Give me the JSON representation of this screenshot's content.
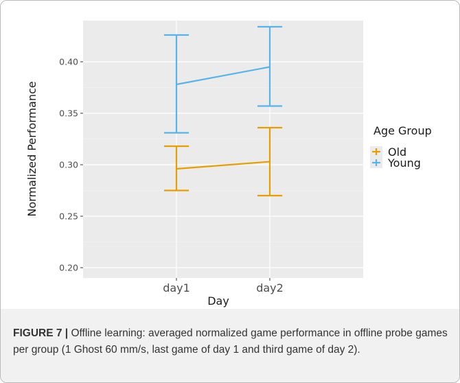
{
  "chart_data": {
    "type": "line",
    "xlabel": "Day",
    "ylabel": "Normalized Performance",
    "categories": [
      "day1",
      "day2"
    ],
    "ylim": [
      0.19,
      0.44
    ],
    "yticks": [
      0.2,
      0.25,
      0.3,
      0.35,
      0.4
    ],
    "ytick_labels": [
      "0.20",
      "0.25",
      "0.30",
      "0.35",
      "0.40"
    ],
    "grid": true,
    "legend_title": "Age Group",
    "legend_position": "right",
    "series": [
      {
        "name": "Old",
        "color": "#E69F00",
        "values": [
          0.296,
          0.303
        ],
        "lower": [
          0.275,
          0.27
        ],
        "upper": [
          0.318,
          0.336
        ]
      },
      {
        "name": "Young",
        "color": "#56B4E9",
        "values": [
          0.378,
          0.395
        ],
        "lower": [
          0.331,
          0.357
        ],
        "upper": [
          0.426,
          0.434
        ]
      }
    ]
  },
  "caption": {
    "label": "FIGURE 7 |",
    "text": " Offline learning: averaged normalized game performance in offline probe games per group (1 Ghost 60 mm/s, last game of day 1 and third game of day 2)."
  }
}
